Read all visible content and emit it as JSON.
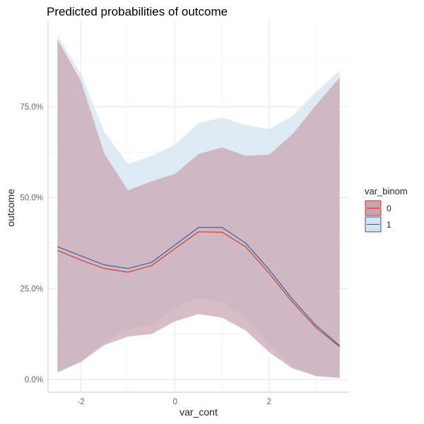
{
  "chart_data": {
    "type": "line",
    "title": "Predicted probabilities of outcome",
    "xlabel": "var_cont",
    "ylabel": "outcome",
    "xlim": [
      -2.7,
      3.7
    ],
    "ylim": [
      -0.035,
      0.985
    ],
    "x_ticks": [
      -2,
      0,
      2
    ],
    "x_tick_labels": [
      "-2",
      "0",
      "2"
    ],
    "y_ticks": [
      0,
      0.25,
      0.5,
      0.75
    ],
    "y_tick_labels": [
      "0.0%",
      "25.0%",
      "50.0%",
      "75.0%"
    ],
    "grid": true,
    "legend": {
      "title": "var_binom",
      "position": "right"
    },
    "x": [
      -2.5,
      -2.0,
      -1.5,
      -1.0,
      -0.5,
      0.0,
      0.5,
      1.0,
      1.5,
      2.0,
      2.5,
      3.0,
      3.5
    ],
    "series": [
      {
        "name": "0",
        "line_color": "#c0392b",
        "fill_color": "#c9a3b0",
        "values": [
          0.355,
          0.328,
          0.305,
          0.295,
          0.313,
          0.36,
          0.406,
          0.405,
          0.365,
          0.292,
          0.212,
          0.142,
          0.09
        ],
        "lower": [
          0.02,
          0.048,
          0.095,
          0.118,
          0.125,
          0.16,
          0.18,
          0.17,
          0.135,
          0.075,
          0.03,
          0.01,
          0.005
        ],
        "upper": [
          0.935,
          0.82,
          0.62,
          0.52,
          0.545,
          0.565,
          0.62,
          0.638,
          0.615,
          0.618,
          0.675,
          0.755,
          0.83
        ]
      },
      {
        "name": "1",
        "line_color": "#2c5a9a",
        "fill_color": "#d3e3f0",
        "values": [
          0.365,
          0.34,
          0.315,
          0.305,
          0.322,
          0.37,
          0.418,
          0.418,
          0.375,
          0.302,
          0.22,
          0.148,
          0.093
        ],
        "lower": [
          0.018,
          0.05,
          0.103,
          0.14,
          0.148,
          0.2,
          0.225,
          0.21,
          0.17,
          0.095,
          0.035,
          0.008,
          0.003
        ],
        "upper": [
          0.945,
          0.84,
          0.68,
          0.592,
          0.615,
          0.645,
          0.705,
          0.72,
          0.7,
          0.688,
          0.725,
          0.79,
          0.85
        ]
      }
    ]
  }
}
